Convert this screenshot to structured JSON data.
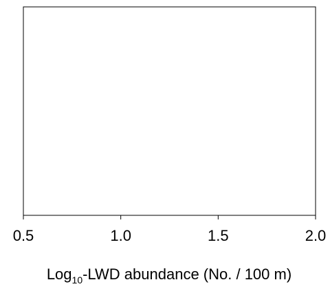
{
  "chart_data": {
    "type": "scatter",
    "xlim": [
      0.5,
      2.0
    ],
    "x_ticks": [
      0.5,
      1.0,
      1.5,
      2.0
    ],
    "x_tick_labels": [
      "0.5",
      "1.0",
      "1.5",
      "2.0"
    ],
    "xlabel_prefix": "Log",
    "xlabel_subscript": "10",
    "xlabel_suffix": "-LWD abundance (No. / 100 m)",
    "ylabel": "",
    "title": "",
    "grid": false,
    "series": [
      {
        "x": [],
        "y": []
      }
    ]
  }
}
